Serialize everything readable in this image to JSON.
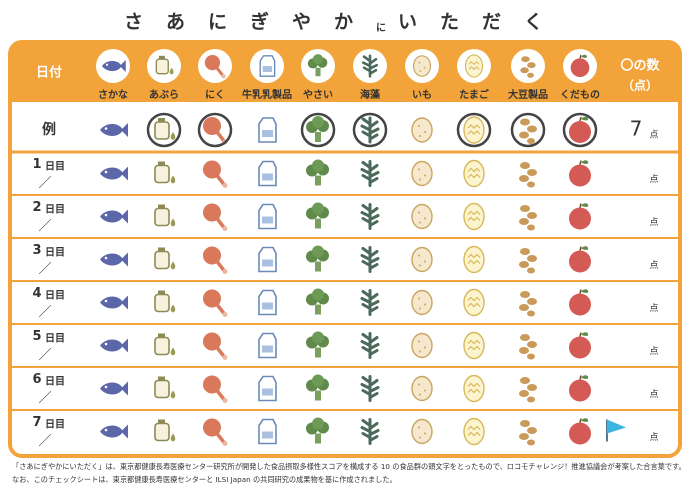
{
  "title": {
    "part1": "さあにぎやか",
    "small": "に",
    "part2": "いただく"
  },
  "header": {
    "date": "日付",
    "score_line1": "〇の数",
    "score_line2": "（点）"
  },
  "foods": [
    "さかな",
    "あぶら",
    "にく",
    "牛乳乳製品",
    "やさい",
    "海藻",
    "いも",
    "たまご",
    "大豆製品",
    "くだもの"
  ],
  "example": {
    "label": "例",
    "circled": [
      false,
      true,
      true,
      false,
      true,
      true,
      false,
      true,
      true,
      true
    ],
    "score": 7,
    "unit": "点"
  },
  "days": [
    {
      "number": "1",
      "suffix": "日目",
      "slash": "／",
      "unit": "点"
    },
    {
      "number": "2",
      "suffix": "日目",
      "slash": "／",
      "unit": "点"
    },
    {
      "number": "3",
      "suffix": "日目",
      "slash": "／",
      "unit": "点"
    },
    {
      "number": "4",
      "suffix": "日目",
      "slash": "／",
      "unit": "点"
    },
    {
      "number": "5",
      "suffix": "日目",
      "slash": "／",
      "unit": "点"
    },
    {
      "number": "6",
      "suffix": "日目",
      "slash": "／",
      "unit": "点"
    },
    {
      "number": "7",
      "suffix": "日目",
      "slash": "／",
      "unit": "点"
    }
  ],
  "notes": [
    "「さあにぎやかにいただく」は、東京都健康長寿医療センター研究所が開発した食品摂取多様性スコアを構成する 10 の食品群の頭文字をとったもので、ロコモチャレンジ！推進協議会が考案した合言葉です。",
    "なお、このチェックシートは、東京都健康長寿医療センターと ILSI Japan の共同研究の成果物を基に作成されました。"
  ]
}
